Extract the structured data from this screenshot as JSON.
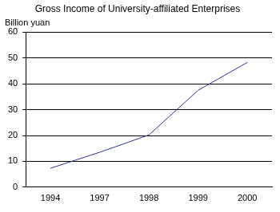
{
  "chart_data": {
    "type": "line",
    "title": "Gross Income of University-affiliated Enterprises",
    "ylabel": "Billion yuan",
    "categories": [
      "1994",
      "1997",
      "1998",
      "1999",
      "2000"
    ],
    "values": [
      7.3,
      13.5,
      20.2,
      37.5,
      48.3
    ],
    "color": "#2e2ea8",
    "ylim": [
      0,
      60
    ],
    "yticks": [
      0,
      10,
      20,
      30,
      40,
      50,
      60
    ],
    "grid": true
  }
}
